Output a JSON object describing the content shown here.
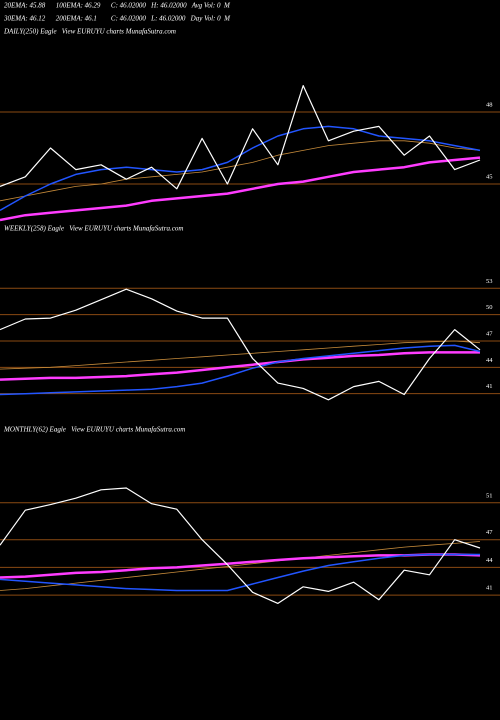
{
  "header": {
    "lines": [
      "20EMA: 45.88      100EMA: 46.29      C: 46.02000   H: 46.02000   Avg Vol: 0  M",
      "30EMA: 46.12      200EMA: 46.1        C: 46.02000   L: 46.02000   Day Vol: 0  M"
    ]
  },
  "chart_data": [
    {
      "type": "line",
      "title": "DAILY(250) Eagle   View EURUYU charts MunafaSutra.com",
      "ylim": [
        43.5,
        51
      ],
      "yticks": [
        48,
        45
      ],
      "tick_line_color": "#8a4a12",
      "series": [
        {
          "color": "#c58a3a",
          "width": 0.8,
          "values": [
            44.3,
            44.5,
            44.7,
            44.9,
            45.0,
            45.2,
            45.3,
            45.4,
            45.5,
            45.7,
            45.9,
            46.2,
            46.4,
            46.6,
            46.7,
            46.8,
            46.8,
            46.7,
            46.5,
            46.4
          ]
        },
        {
          "color": "#ff3cff",
          "width": 2.5,
          "values": [
            43.5,
            43.7,
            43.8,
            43.9,
            44.0,
            44.1,
            44.3,
            44.4,
            44.5,
            44.6,
            44.8,
            45.0,
            45.1,
            45.3,
            45.5,
            45.6,
            45.7,
            45.9,
            46.0,
            46.1
          ]
        },
        {
          "color": "#2255ff",
          "width": 1.5,
          "values": [
            43.9,
            44.5,
            45.0,
            45.4,
            45.6,
            45.7,
            45.6,
            45.5,
            45.6,
            45.9,
            46.5,
            47.0,
            47.3,
            47.4,
            47.3,
            47.0,
            46.9,
            46.8,
            46.6,
            46.4
          ]
        },
        {
          "color": "#ffffff",
          "width": 1.2,
          "values": [
            44.9,
            45.3,
            46.5,
            45.6,
            45.8,
            45.2,
            45.7,
            44.8,
            46.9,
            45.0,
            47.3,
            45.8,
            49.1,
            46.8,
            47.2,
            47.4,
            46.2,
            47.0,
            45.6,
            46.0
          ]
        }
      ]
    },
    {
      "type": "line",
      "title": "WEEKLY(258) Eagle   View EURUYU charts MunafaSutra.com",
      "ylim": [
        38,
        58.5
      ],
      "yticks": [
        53,
        50,
        47,
        44,
        41
      ],
      "tick_line_color": "#8a4a12",
      "series": [
        {
          "color": "#c58a3a",
          "width": 0.8,
          "values": [
            43.8,
            43.9,
            44.0,
            44.2,
            44.4,
            44.6,
            44.8,
            45.0,
            45.2,
            45.4,
            45.6,
            45.8,
            46.0,
            46.2,
            46.4,
            46.6,
            46.8,
            46.9,
            47.0,
            46.8
          ]
        },
        {
          "color": "#ff3cff",
          "width": 2.5,
          "values": [
            42.6,
            42.7,
            42.8,
            42.8,
            42.9,
            43.0,
            43.2,
            43.4,
            43.7,
            44.0,
            44.3,
            44.6,
            44.9,
            45.1,
            45.3,
            45.4,
            45.6,
            45.7,
            45.7,
            45.7
          ]
        },
        {
          "color": "#2255ff",
          "width": 1.5,
          "values": [
            40.9,
            41.0,
            41.1,
            41.2,
            41.3,
            41.4,
            41.5,
            41.8,
            42.2,
            43.0,
            43.9,
            44.6,
            45.0,
            45.3,
            45.6,
            45.9,
            46.2,
            46.4,
            46.5,
            45.8
          ]
        },
        {
          "color": "#ffffff",
          "width": 1.2,
          "values": [
            48.3,
            49.5,
            49.6,
            50.5,
            51.7,
            52.9,
            51.8,
            50.4,
            49.6,
            49.6,
            45.0,
            42.2,
            41.6,
            40.3,
            41.8,
            42.4,
            40.9,
            45.0,
            48.3,
            46.0
          ]
        }
      ]
    },
    {
      "type": "line",
      "title": "MONTHLY(62) Eagle   View EURUYU charts MunafaSutra.com",
      "ylim": [
        38.3,
        57.8
      ],
      "yticks": [
        51,
        47,
        44,
        41
      ],
      "tick_line_color": "#8a4a12",
      "series": [
        {
          "color": "#c58a3a",
          "width": 0.8,
          "values": [
            41.5,
            41.7,
            42.0,
            42.3,
            42.6,
            42.9,
            43.2,
            43.5,
            43.8,
            44.1,
            44.4,
            44.7,
            45.0,
            45.3,
            45.6,
            45.9,
            46.2,
            46.4,
            46.6,
            46.8
          ]
        },
        {
          "color": "#ff3cff",
          "width": 2.5,
          "values": [
            42.9,
            43.0,
            43.2,
            43.4,
            43.5,
            43.7,
            43.9,
            44.0,
            44.2,
            44.4,
            44.6,
            44.8,
            45.0,
            45.1,
            45.2,
            45.3,
            45.3,
            45.4,
            45.4,
            45.3
          ]
        },
        {
          "color": "#2255ff",
          "width": 1.5,
          "values": [
            42.7,
            42.5,
            42.3,
            42.1,
            41.9,
            41.7,
            41.6,
            41.5,
            41.5,
            41.5,
            42.2,
            42.9,
            43.6,
            44.2,
            44.6,
            45.0,
            45.3,
            45.4,
            45.4,
            45.4
          ]
        },
        {
          "color": "#ffffff",
          "width": 1.2,
          "values": [
            46.4,
            50.2,
            50.8,
            51.5,
            52.4,
            52.6,
            50.9,
            50.3,
            47.0,
            44.3,
            41.3,
            40.1,
            41.9,
            41.4,
            42.4,
            40.5,
            43.7,
            43.2,
            47.0,
            46.1
          ]
        }
      ]
    }
  ]
}
